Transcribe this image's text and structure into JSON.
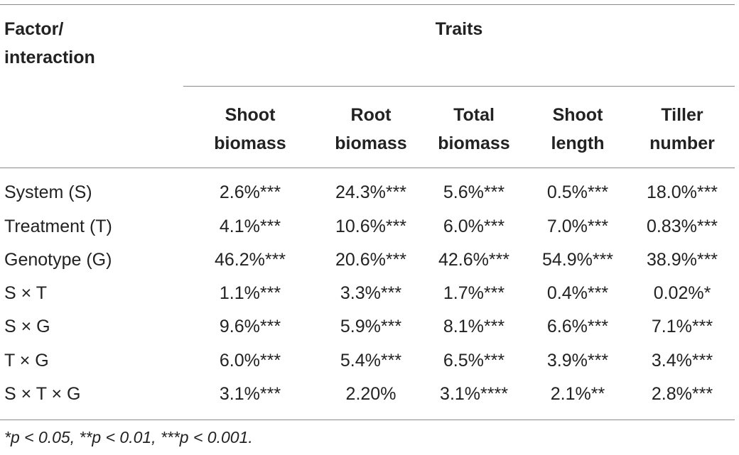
{
  "table": {
    "factor_header_line1": "Factor/",
    "factor_header_line2": "interaction",
    "traits_header": "Traits",
    "columns": [
      {
        "line1": "Shoot",
        "line2": "biomass"
      },
      {
        "line1": "Root",
        "line2": "biomass"
      },
      {
        "line1": "Total",
        "line2": "biomass"
      },
      {
        "line1": "Shoot",
        "line2": "length"
      },
      {
        "line1": "Tiller",
        "line2": "number"
      }
    ],
    "rows": [
      {
        "label": "System (S)",
        "values": [
          "2.6%***",
          "24.3%***",
          "5.6%***",
          "0.5%***",
          "18.0%***"
        ]
      },
      {
        "label": "Treatment (T)",
        "values": [
          "4.1%***",
          "10.6%***",
          "6.0%***",
          "7.0%***",
          "0.83%***"
        ]
      },
      {
        "label": "Genotype (G)",
        "values": [
          "46.2%***",
          "20.6%***",
          "42.6%***",
          "54.9%***",
          "38.9%***"
        ]
      },
      {
        "label": "S × T",
        "values": [
          "1.1%***",
          "3.3%***",
          "1.7%***",
          "0.4%***",
          "0.02%*"
        ]
      },
      {
        "label": "S × G",
        "values": [
          "9.6%***",
          "5.9%***",
          "8.1%***",
          "6.6%***",
          "7.1%***"
        ]
      },
      {
        "label": "T × G",
        "values": [
          "6.0%***",
          "5.4%***",
          "6.5%***",
          "3.9%***",
          "3.4%***"
        ]
      },
      {
        "label": "S × T × G",
        "values": [
          "3.1%***",
          "2.20%",
          "3.1%****",
          "2.1%**",
          "2.8%***"
        ]
      }
    ],
    "footnote": "*p < 0.05, **p < 0.01, ***p < 0.001."
  }
}
